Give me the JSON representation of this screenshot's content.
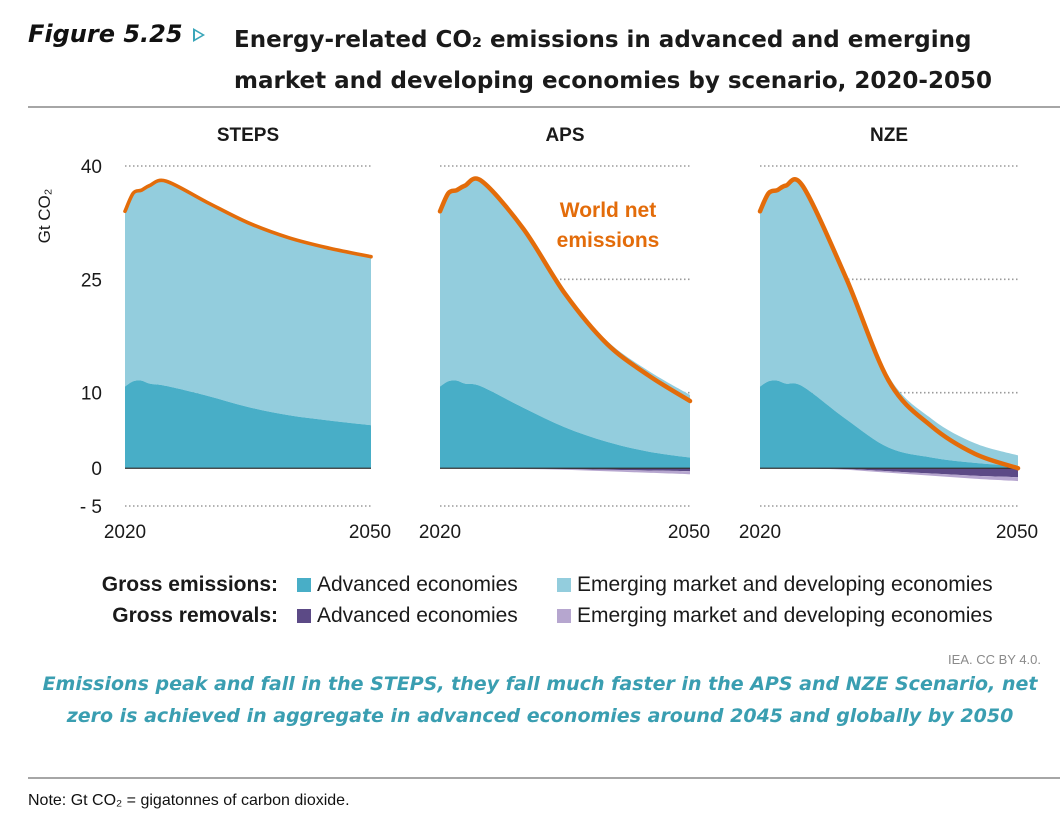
{
  "figure": {
    "label": "Figure 5.25",
    "title": "Energy-related CO₂ emissions in advanced and emerging market and developing economies by scenario, 2020-2050"
  },
  "colors": {
    "advanced_emissions": "#48aec7",
    "emde_emissions": "#93cddd",
    "advanced_removals": "#5c4a86",
    "emde_removals": "#b6a6cf",
    "net_line": "#e36c0a",
    "accent": "#3a9eb1"
  },
  "chart_data": [
    {
      "type": "area",
      "title": "STEPS",
      "ylabel": "Gt CO₂",
      "ylim": [
        -5,
        40
      ],
      "y_ticks": [
        "40",
        "25",
        "10",
        "0",
        "- 5"
      ],
      "y_tick_values": [
        40,
        25,
        10,
        0,
        -5
      ],
      "x_tick_labels": [
        "2020",
        "2050"
      ],
      "x": [
        2020,
        2021,
        2022,
        2023,
        2025,
        2030,
        2035,
        2040,
        2045,
        2050
      ],
      "series": [
        {
          "name": "Advanced economies",
          "group": "Gross emissions",
          "values": [
            10.8,
            11.5,
            11.6,
            11.2,
            10.9,
            9.6,
            8.1,
            7.0,
            6.3,
            5.7
          ]
        },
        {
          "name": "Emerging market and developing economies",
          "group": "Gross emissions",
          "values": [
            23.2,
            24.9,
            25.2,
            26.2,
            27.1,
            25.6,
            24.4,
            23.5,
            22.8,
            22.3
          ]
        },
        {
          "name": "Advanced economies",
          "group": "Gross removals",
          "values": [
            0,
            0,
            0,
            0,
            0,
            0,
            0,
            0,
            0,
            0
          ]
        },
        {
          "name": "Emerging market and developing economies",
          "group": "Gross removals",
          "values": [
            0,
            0,
            0,
            0,
            0,
            0,
            0,
            0,
            0,
            0
          ]
        }
      ],
      "net": [
        34.0,
        36.4,
        36.8,
        37.4,
        38.0,
        35.2,
        32.5,
        30.5,
        29.1,
        28.0
      ]
    },
    {
      "type": "area",
      "title": "APS",
      "ylim": [
        -5,
        40
      ],
      "x_tick_labels": [
        "2020",
        "2050"
      ],
      "x": [
        2020,
        2021,
        2022,
        2023,
        2025,
        2030,
        2035,
        2040,
        2045,
        2050
      ],
      "series": [
        {
          "name": "Advanced economies",
          "group": "Gross emissions",
          "values": [
            10.8,
            11.5,
            11.6,
            11.2,
            10.8,
            8.0,
            5.4,
            3.5,
            2.2,
            1.4
          ]
        },
        {
          "name": "Emerging market and developing economies",
          "group": "Gross emissions",
          "values": [
            23.2,
            24.9,
            25.2,
            26.2,
            27.2,
            23.8,
            17.9,
            13.4,
            10.7,
            8.3
          ]
        },
        {
          "name": "Advanced economies",
          "group": "Gross removals",
          "values": [
            0,
            0,
            0,
            0,
            0,
            -0.05,
            -0.1,
            -0.2,
            -0.3,
            -0.4
          ]
        },
        {
          "name": "Emerging market and developing economies",
          "group": "Gross removals",
          "values": [
            0,
            0,
            0,
            0,
            0,
            -0.05,
            -0.1,
            -0.2,
            -0.3,
            -0.4
          ]
        }
      ],
      "net": [
        34.0,
        36.4,
        36.8,
        37.4,
        38.0,
        31.7,
        23.1,
        16.5,
        12.3,
        8.9
      ],
      "annotation": {
        "lines": [
          "World net",
          "emissions"
        ]
      }
    },
    {
      "type": "area",
      "title": "NZE",
      "ylim": [
        -5,
        40
      ],
      "x_tick_labels": [
        "2020",
        "2050"
      ],
      "x": [
        2020,
        2021,
        2022,
        2023,
        2025,
        2030,
        2035,
        2040,
        2045,
        2050
      ],
      "series": [
        {
          "name": "Advanced economies",
          "group": "Gross emissions",
          "values": [
            10.8,
            11.5,
            11.6,
            11.2,
            10.8,
            6.5,
            2.7,
            1.4,
            0.7,
            0.3
          ]
        },
        {
          "name": "Emerging market and developing economies",
          "group": "Gross emissions",
          "values": [
            23.2,
            24.9,
            25.2,
            26.2,
            26.5,
            18.9,
            9.4,
            5.1,
            2.6,
            1.4
          ]
        },
        {
          "name": "Advanced economies",
          "group": "Gross removals",
          "values": [
            0,
            0,
            0,
            0,
            0,
            -0.1,
            -0.4,
            -0.7,
            -1.0,
            -1.2
          ]
        },
        {
          "name": "Emerging market and developing economies",
          "group": "Gross removals",
          "values": [
            0,
            0,
            0,
            0,
            0,
            -0.1,
            -0.2,
            -0.3,
            -0.4,
            -0.5
          ]
        }
      ],
      "net": [
        34.0,
        36.4,
        36.8,
        37.4,
        37.3,
        25.2,
        11.5,
        5.5,
        1.9,
        0.0
      ]
    }
  ],
  "legend": {
    "gross_emissions_label": "Gross emissions:",
    "gross_removals_label": "Gross removals:",
    "advanced": "Advanced economies",
    "emde": "Emerging market and developing economies"
  },
  "credit": "IEA. CC BY 4.0.",
  "caption": "Emissions peak and fall in the STEPS, they fall much faster in the APS and NZE Scenario, net zero is achieved in aggregate in advanced economies around 2045 and globally by 2050",
  "note": "Note: Gt CO₂ = gigatonnes of carbon dioxide."
}
